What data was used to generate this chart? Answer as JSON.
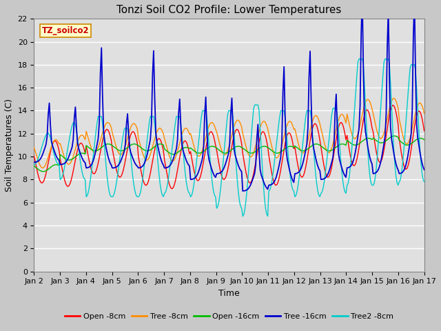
{
  "title": "Tonzi Soil CO2 Profile: Lower Temperatures",
  "xlabel": "Time",
  "ylabel": "Soil Temperatures (C)",
  "ylim": [
    0,
    22
  ],
  "xlim": [
    0,
    15
  ],
  "xtick_labels": [
    "Jan 2",
    "Jan 3",
    "Jan 4",
    "Jan 5",
    "Jan 6",
    "Jan 7",
    "Jan 8",
    "Jan 9",
    "Jan 10",
    "Jan 11",
    "Jan 12",
    "Jan 13",
    "Jan 14",
    "Jan 15",
    "Jan 16",
    "Jan 17"
  ],
  "ytick_values": [
    0,
    2,
    4,
    6,
    8,
    10,
    12,
    14,
    16,
    18,
    20,
    22
  ],
  "series_colors": {
    "open8": "#ff0000",
    "tree8": "#ff8c00",
    "open16": "#00bb00",
    "tree16": "#0000cc",
    "tree2_8": "#00cccc"
  },
  "series_labels": [
    "Open -8cm",
    "Tree -8cm",
    "Open -16cm",
    "Tree -16cm",
    "Tree2 -8cm"
  ],
  "watermark_text": "TZ_soilco2",
  "watermark_color": "#cc0000",
  "watermark_bg": "#ffffcc",
  "watermark_border": "#cc8800",
  "fig_facecolor": "#c8c8c8",
  "ax_facecolor": "#e0e0e0",
  "grid_color": "#ffffff",
  "title_fontsize": 11,
  "axis_label_fontsize": 9,
  "tick_fontsize": 8
}
